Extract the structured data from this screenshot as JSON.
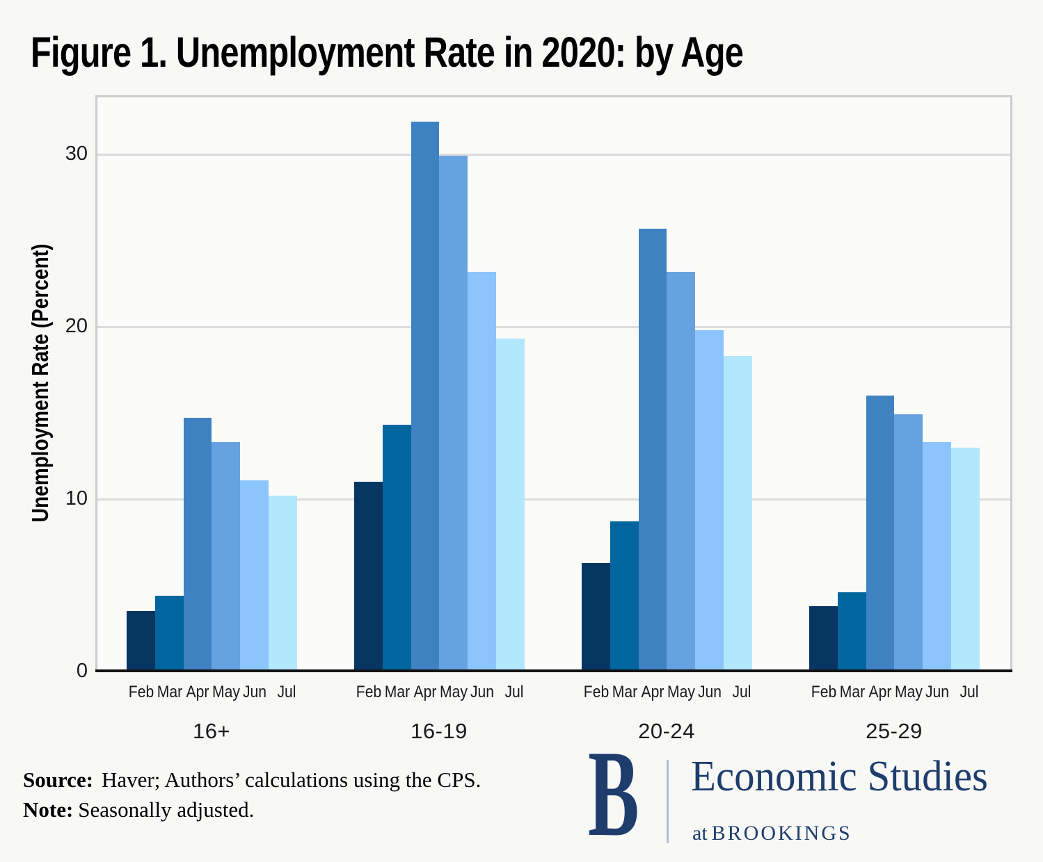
{
  "title": "Figure 1. Unemployment Rate in 2020: by Age",
  "chart_data": {
    "type": "bar",
    "title": "Figure 1. Unemployment Rate in 2020: by Age",
    "xlabel": "",
    "ylabel": "Unemployment Rate (Percent)",
    "ylim": [
      0,
      33.4
    ],
    "yticks": [
      0,
      10,
      20,
      30
    ],
    "grid": true,
    "legend": "none",
    "group_categories": [
      "16+",
      "16-19",
      "20-24",
      "25-29"
    ],
    "months": [
      "Feb",
      "Mar",
      "Apr",
      "May",
      "Jun",
      "Jul"
    ],
    "month_colors": [
      "#083663",
      "#00669d",
      "#3e82c2",
      "#66a2e0",
      "#8cc5fc",
      "#b2e8fc"
    ],
    "series": [
      {
        "name": "16+",
        "values": [
          3.5,
          4.4,
          14.7,
          13.3,
          11.1,
          10.2
        ]
      },
      {
        "name": "16-19",
        "values": [
          11.0,
          14.3,
          31.9,
          29.9,
          23.2,
          19.3
        ]
      },
      {
        "name": "20-24",
        "values": [
          6.3,
          8.7,
          25.7,
          23.2,
          19.8,
          18.3
        ]
      },
      {
        "name": "25-29",
        "values": [
          3.8,
          4.6,
          16.0,
          14.9,
          13.3,
          13.0
        ]
      }
    ]
  },
  "footer": {
    "source_label": "Source:",
    "source_text": "Haver; Authors’ calculations using the CPS.",
    "note_label": "Note:",
    "note_text": "Seasonally adjusted."
  },
  "logo": {
    "monogram": "B",
    "line1": "Economic Studies",
    "line2_prefix": "at",
    "line2_name": "BROOKINGS",
    "color": "#1e3d6c"
  },
  "colors": {
    "page_background": "#f8f8f7",
    "plot_background": "#fbfbfa",
    "frame_border": "#cdcdcd",
    "gridline": "#dcdcdc",
    "axis_line": "#141414",
    "logo_navy": "#1e3d6c"
  }
}
